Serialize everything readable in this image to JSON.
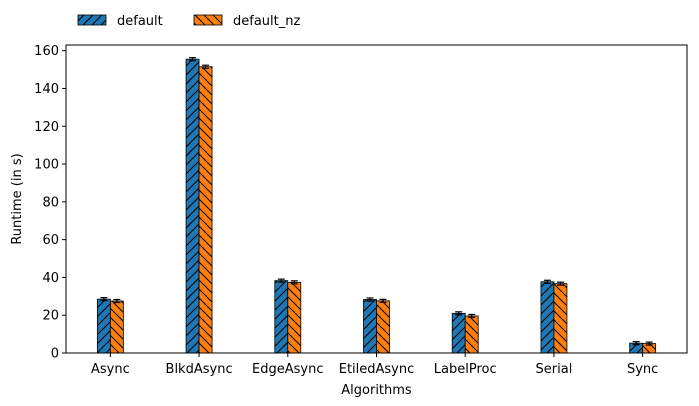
{
  "chart_data": {
    "type": "bar",
    "title": "",
    "xlabel": "Algorithms",
    "ylabel": "Runtime (in s)",
    "categories": [
      "Async",
      "BlkdAsync",
      "EdgeAsync",
      "EtiledAsync",
      "LabelProc",
      "Serial",
      "Sync"
    ],
    "series": [
      {
        "name": "default",
        "color": "#1f77b4",
        "hatch": "/",
        "values": [
          28.5,
          155.5,
          38.3,
          28.3,
          21.0,
          37.7,
          5.2
        ]
      },
      {
        "name": "default_nz",
        "color": "#ff7f0e",
        "hatch": "\\",
        "values": [
          27.5,
          151.5,
          37.4,
          27.6,
          19.6,
          36.7,
          5.0
        ]
      }
    ],
    "ylim": [
      0,
      163
    ],
    "yticks": [
      0,
      20,
      40,
      60,
      80,
      100,
      120,
      140,
      160
    ],
    "error_bars": true,
    "grid": false,
    "legend_position": "top-left, above plot"
  }
}
